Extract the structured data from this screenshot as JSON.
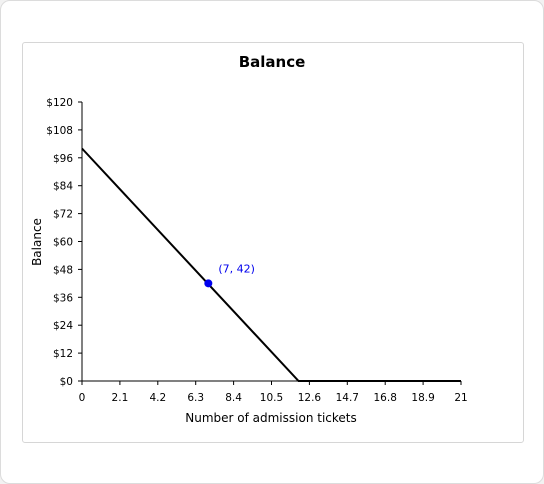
{
  "chart_data": {
    "type": "line",
    "title": "Balance",
    "xlabel": "Number of admission tickets",
    "ylabel": "Balance",
    "xlim": [
      0,
      21
    ],
    "ylim": [
      0,
      120
    ],
    "x_ticks": [
      "0",
      "2.1",
      "4.2",
      "6.3",
      "8.4",
      "10.5",
      "12.6",
      "14.7",
      "16.8",
      "18.9",
      "21"
    ],
    "y_ticks": [
      "$0",
      "$12",
      "$24",
      "$36",
      "$48",
      "$60",
      "$72",
      "$84",
      "$96",
      "$108",
      "$120"
    ],
    "series": [
      {
        "x": [
          0,
          12,
          21
        ],
        "y": [
          100,
          0,
          0
        ],
        "color": "#000000"
      }
    ],
    "highlight_point": {
      "x": 7,
      "y": 42,
      "label": "(7, 42)",
      "color": "#0000ee"
    },
    "grid": false
  }
}
